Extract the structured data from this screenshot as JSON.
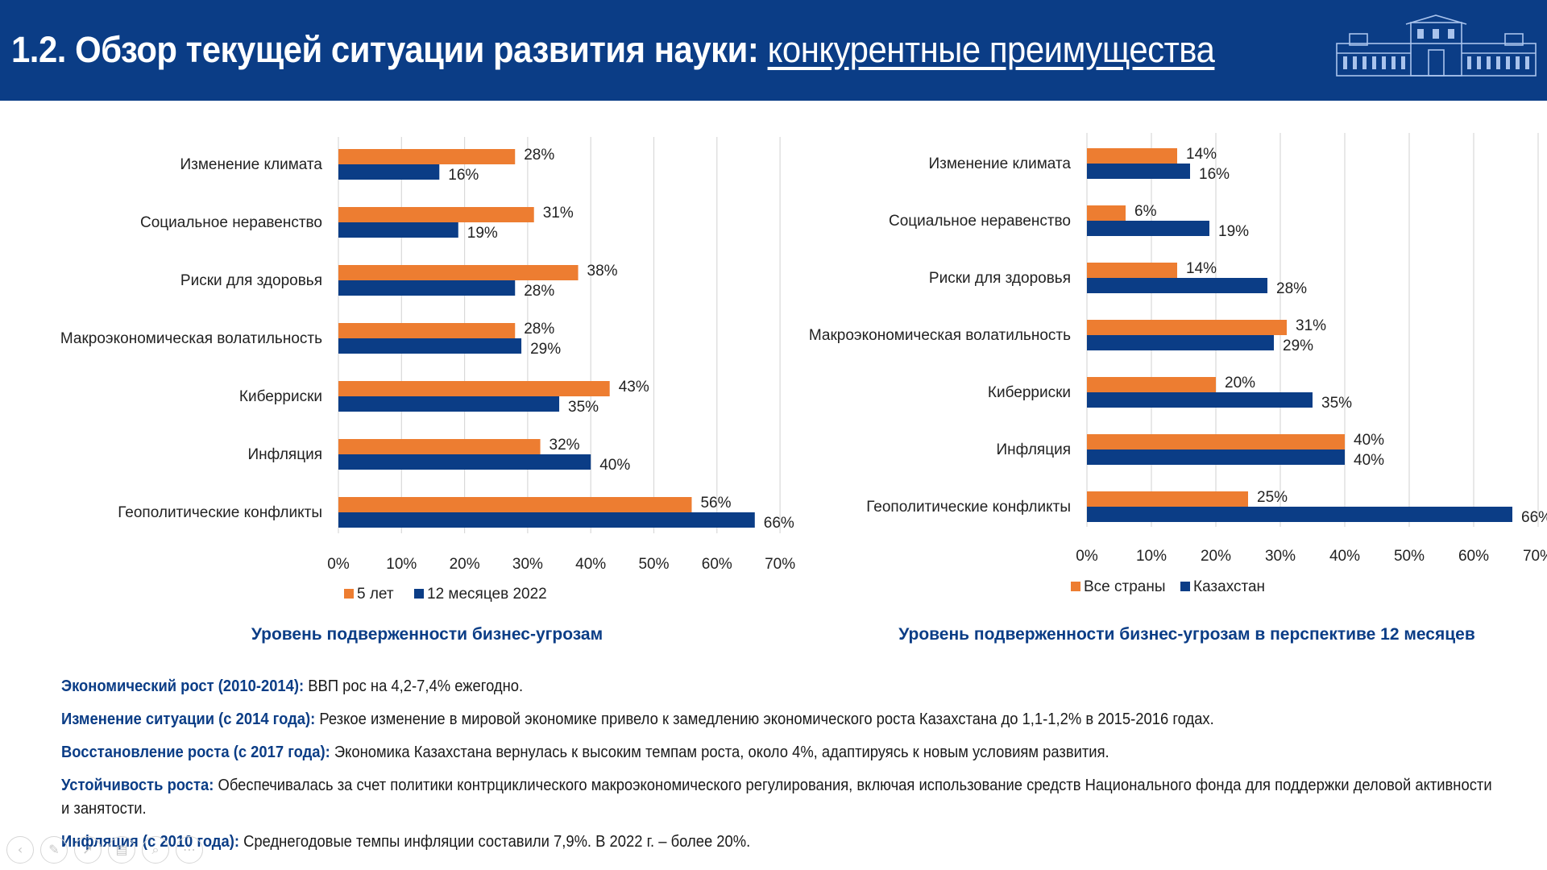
{
  "header": {
    "title_main": "1.2. Обзор текущей ситуации развития науки:",
    "title_sub": "конкурентные преимущества",
    "logo_icon": "building-icon"
  },
  "colors": {
    "header_bg": "#0b3d86",
    "orange": "#ed7d31",
    "blue": "#0b3d86",
    "heading": "#0b3d86"
  },
  "chart_data": [
    {
      "type": "bar",
      "orientation": "horizontal",
      "title": "Уровень подверженности бизнес-угрозам",
      "categories": [
        "Изменение климата",
        "Социальное неравенство",
        "Риски для здоровья",
        "Макроэкономическая волатильность",
        "Киберриски",
        "Инфляция",
        "Геополитические конфликты"
      ],
      "series": [
        {
          "name": "5 лет",
          "color": "#ed7d31",
          "values": [
            28,
            31,
            38,
            28,
            43,
            32,
            56
          ]
        },
        {
          "name": "12 месяцев 2022",
          "color": "#0b3d86",
          "values": [
            16,
            19,
            28,
            29,
            35,
            40,
            66
          ]
        }
      ],
      "xlim": [
        0,
        70
      ],
      "xticks": [
        "0%",
        "10%",
        "20%",
        "30%",
        "40%",
        "50%",
        "60%",
        "70%"
      ],
      "grid": true,
      "legend": "bottom"
    },
    {
      "type": "bar",
      "orientation": "horizontal",
      "title": "Уровень подверженности бизнес-угрозам в перспективе 12 месяцев",
      "categories": [
        "Изменение климата",
        "Социальное неравенство",
        "Риски для здоровья",
        "Макроэкономическая волатильность",
        "Киберриски",
        "Инфляция",
        "Геополитические конфликты"
      ],
      "series": [
        {
          "name": "Все страны",
          "color": "#ed7d31",
          "values": [
            14,
            6,
            14,
            31,
            20,
            40,
            25
          ]
        },
        {
          "name": "Казахстан",
          "color": "#0b3d86",
          "values": [
            16,
            19,
            28,
            29,
            35,
            40,
            66
          ]
        }
      ],
      "xlim": [
        0,
        70
      ],
      "xticks": [
        "0%",
        "10%",
        "20%",
        "30%",
        "40%",
        "50%",
        "60%",
        "70%"
      ],
      "grid": true,
      "legend": "bottom"
    }
  ],
  "notes": [
    {
      "key": "Экономический рост (2010-2014):",
      "text": " ВВП рос на 4,2-7,4% ежегодно."
    },
    {
      "key": "Изменение ситуации (с 2014 года):",
      "text": " Резкое изменение в мировой экономике привело к замедлению экономического роста Казахстана до 1,1-1,2% в 2015-2016 годах."
    },
    {
      "key": "Восстановление роста (с 2017 года):",
      "text": " Экономика Казахстана вернулась к высоким темпам роста, около 4%, адаптируясь к новым условиям развития."
    },
    {
      "key": "Устойчивость роста:",
      "text": " Обеспечивалась за счет политики контрциклического макроэкономического регулирования, включая использование средств Национального фонда для поддержки деловой активности и занятости."
    },
    {
      "key": "Инфляция (с 2010 года):",
      "text": " Среднегодовые темпы инфляции составили 7,9%. В 2022 г. – более 20%."
    }
  ],
  "nav": [
    {
      "icon": "chevron-left-icon",
      "glyph": "‹"
    },
    {
      "icon": "pencil-icon",
      "glyph": "✎"
    },
    {
      "icon": "arrow-icon",
      "glyph": "➚"
    },
    {
      "icon": "slides-icon",
      "glyph": "▤"
    },
    {
      "icon": "zoom-icon",
      "glyph": "⌕"
    },
    {
      "icon": "more-icon",
      "glyph": "⋯"
    }
  ]
}
